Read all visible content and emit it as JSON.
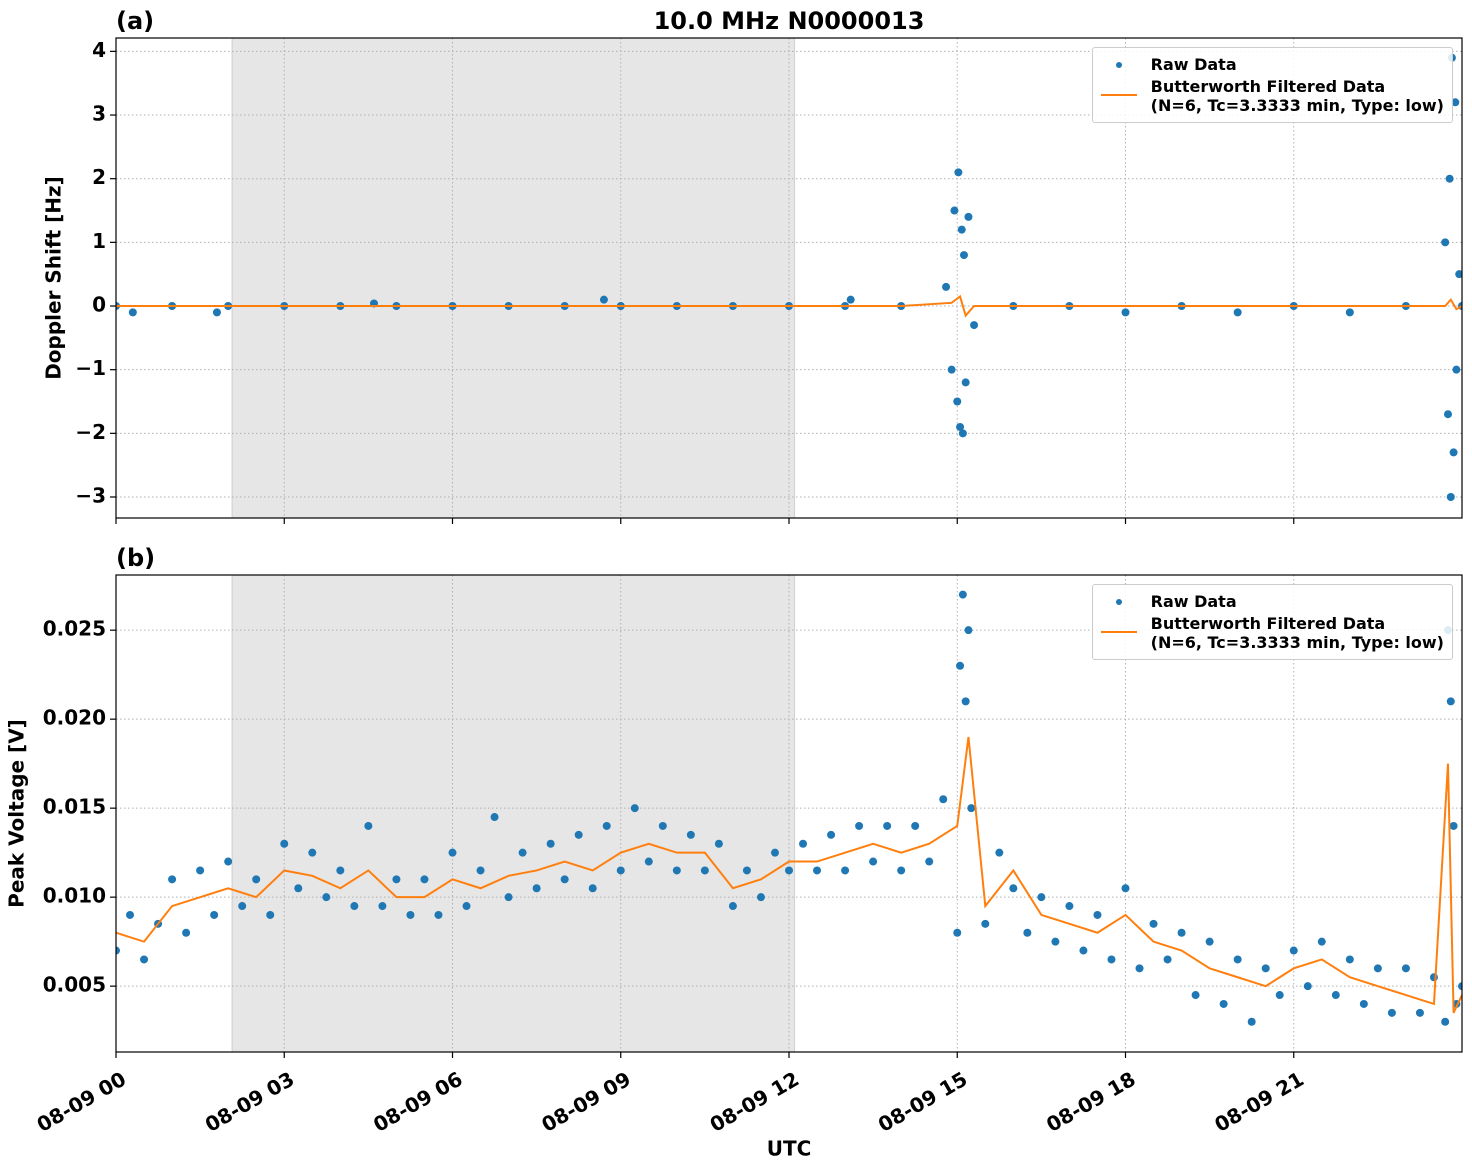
{
  "chart_data": [
    {
      "type": "scatter-line",
      "title": "10.0 MHz N0000013",
      "panel_label": "(a)",
      "ylabel": "Doppler Shift [Hz]",
      "xlim": [
        0,
        24
      ],
      "xticks": [
        0,
        3,
        6,
        9,
        12,
        15,
        18,
        21
      ],
      "ylim": [
        -3.33,
        4.21
      ],
      "yticks": [
        {
          "value": -3,
          "label": "−3"
        },
        {
          "value": -2,
          "label": "−2"
        },
        {
          "value": -1,
          "label": "−1"
        },
        0,
        1,
        2,
        3,
        4
      ],
      "grid": true,
      "legend": "upper right",
      "shaded_span": [
        2.07,
        12.1
      ],
      "series": [
        {
          "name": "Raw Data",
          "kind": "scatter",
          "color": "#1f77b4",
          "x": [
            0,
            0.3,
            1,
            1.8,
            2,
            3,
            4,
            4.6,
            5,
            6,
            7,
            8,
            8.7,
            9,
            10,
            11,
            12,
            13,
            13.1,
            14,
            14.8,
            14.9,
            14.95,
            15,
            15.02,
            15.05,
            15.08,
            15.1,
            15.12,
            15.15,
            15.2,
            15.3,
            16,
            17,
            18,
            19,
            20,
            21,
            22,
            23,
            23.7,
            23.75,
            23.78,
            23.8,
            23.82,
            23.85,
            23.88,
            23.9,
            23.95,
            24
          ],
          "values": [
            0,
            -0.1,
            0,
            -0.1,
            0,
            0,
            0,
            0.04,
            0,
            0,
            0,
            0,
            0.1,
            0,
            0,
            0,
            0,
            0,
            0.1,
            0,
            0.3,
            -1.0,
            1.5,
            -1.5,
            2.1,
            -1.9,
            1.2,
            -2.0,
            0.8,
            -1.2,
            1.4,
            -0.3,
            0,
            0,
            -0.1,
            0,
            -0.1,
            0,
            -0.1,
            0,
            1.0,
            -1.7,
            2.0,
            -3.0,
            3.9,
            -2.3,
            3.2,
            -1.0,
            0.5,
            0
          ]
        },
        {
          "name": "Butterworth Filtered Data\n(N=6, Tc=3.3333 min, Type: low)",
          "kind": "line",
          "color": "#ff7f0e",
          "x": [
            0,
            2,
            4,
            6,
            8,
            10,
            12,
            14,
            14.9,
            15.05,
            15.15,
            15.3,
            16,
            18,
            20,
            22,
            23.7,
            23.8,
            23.9,
            24
          ],
          "values": [
            0,
            0,
            0,
            0,
            0,
            0,
            0,
            0,
            0.05,
            0.15,
            -0.15,
            0,
            0,
            0,
            0,
            0,
            0,
            0.1,
            -0.05,
            0
          ]
        }
      ]
    },
    {
      "type": "scatter-line",
      "panel_label": "(b)",
      "ylabel": "Peak Voltage [V]",
      "xlabel": "UTC",
      "xlim": [
        0,
        24
      ],
      "xticks": [
        {
          "value": 0,
          "label": "08-09 00"
        },
        {
          "value": 3,
          "label": "08-09 03"
        },
        {
          "value": 6,
          "label": "08-09 06"
        },
        {
          "value": 9,
          "label": "08-09 09"
        },
        {
          "value": 12,
          "label": "08-09 12"
        },
        {
          "value": 15,
          "label": "08-09 15"
        },
        {
          "value": 18,
          "label": "08-09 18"
        },
        {
          "value": 21,
          "label": "08-09 21"
        }
      ],
      "ylim": [
        0.0013,
        0.0281
      ],
      "yticks": [
        0.005,
        {
          "value": 0.01,
          "label": "0.010"
        },
        0.015,
        {
          "value": 0.02,
          "label": "0.020"
        },
        0.025
      ],
      "grid": true,
      "legend": "upper right",
      "shaded_span": [
        2.07,
        12.1
      ],
      "series": [
        {
          "name": "Raw Data",
          "kind": "scatter",
          "color": "#1f77b4",
          "x": [
            0,
            0.25,
            0.5,
            0.75,
            1,
            1.25,
            1.5,
            1.75,
            2,
            2.25,
            2.5,
            2.75,
            3,
            3.25,
            3.5,
            3.75,
            4,
            4.25,
            4.5,
            4.75,
            5,
            5.25,
            5.5,
            5.75,
            6,
            6.25,
            6.5,
            6.75,
            7,
            7.25,
            7.5,
            7.75,
            8,
            8.25,
            8.5,
            8.75,
            9,
            9.25,
            9.5,
            9.75,
            10,
            10.25,
            10.5,
            10.75,
            11,
            11.25,
            11.5,
            11.75,
            12,
            12.25,
            12.5,
            12.75,
            13,
            13.25,
            13.5,
            13.75,
            14,
            14.25,
            14.5,
            14.75,
            15,
            15.05,
            15.1,
            15.15,
            15.2,
            15.25,
            15.5,
            15.75,
            16,
            16.25,
            16.5,
            16.75,
            17,
            17.25,
            17.5,
            17.75,
            18,
            18.25,
            18.5,
            18.75,
            19,
            19.25,
            19.5,
            19.75,
            20,
            20.25,
            20.5,
            20.75,
            21,
            21.25,
            21.5,
            21.75,
            22,
            22.25,
            22.5,
            22.75,
            23,
            23.25,
            23.5,
            23.7,
            23.75,
            23.8,
            23.85,
            23.9,
            24
          ],
          "values": [
            0.007,
            0.009,
            0.0065,
            0.0085,
            0.011,
            0.008,
            0.0115,
            0.009,
            0.012,
            0.0095,
            0.011,
            0.009,
            0.013,
            0.0105,
            0.0125,
            0.01,
            0.0115,
            0.0095,
            0.014,
            0.0095,
            0.011,
            0.009,
            0.011,
            0.009,
            0.0125,
            0.0095,
            0.0115,
            0.0145,
            0.01,
            0.0125,
            0.0105,
            0.013,
            0.011,
            0.0135,
            0.0105,
            0.014,
            0.0115,
            0.015,
            0.012,
            0.014,
            0.0115,
            0.0135,
            0.0115,
            0.013,
            0.0095,
            0.0115,
            0.01,
            0.0125,
            0.0115,
            0.013,
            0.0115,
            0.0135,
            0.0115,
            0.014,
            0.012,
            0.014,
            0.0115,
            0.014,
            0.012,
            0.0155,
            0.008,
            0.023,
            0.027,
            0.021,
            0.025,
            0.015,
            0.0085,
            0.0125,
            0.0105,
            0.008,
            0.01,
            0.0075,
            0.0095,
            0.007,
            0.009,
            0.0065,
            0.0105,
            0.006,
            0.0085,
            0.0065,
            0.008,
            0.0045,
            0.0075,
            0.004,
            0.0065,
            0.003,
            0.006,
            0.0045,
            0.007,
            0.005,
            0.0075,
            0.0045,
            0.0065,
            0.004,
            0.006,
            0.0035,
            0.006,
            0.0035,
            0.0055,
            0.003,
            0.025,
            0.021,
            0.014,
            0.004,
            0.005
          ]
        },
        {
          "name": "Butterworth Filtered Data\n(N=6, Tc=3.3333 min, Type: low)",
          "kind": "line",
          "color": "#ff7f0e",
          "x": [
            0,
            0.5,
            1,
            1.5,
            2,
            2.5,
            3,
            3.5,
            4,
            4.5,
            5,
            5.5,
            6,
            6.5,
            7,
            7.5,
            8,
            8.5,
            9,
            9.5,
            10,
            10.5,
            11,
            11.5,
            12,
            12.5,
            13,
            13.5,
            14,
            14.5,
            15,
            15.2,
            15.5,
            16,
            16.5,
            17,
            17.5,
            18,
            18.5,
            19,
            19.5,
            20,
            20.5,
            21,
            21.5,
            22,
            22.5,
            23,
            23.5,
            23.75,
            23.85,
            24
          ],
          "values": [
            0.008,
            0.0075,
            0.0095,
            0.01,
            0.0105,
            0.01,
            0.0115,
            0.0112,
            0.0105,
            0.0115,
            0.01,
            0.01,
            0.011,
            0.0105,
            0.0112,
            0.0115,
            0.012,
            0.0115,
            0.0125,
            0.013,
            0.0125,
            0.0125,
            0.0105,
            0.011,
            0.012,
            0.012,
            0.0125,
            0.013,
            0.0125,
            0.013,
            0.014,
            0.019,
            0.0095,
            0.0115,
            0.009,
            0.0085,
            0.008,
            0.009,
            0.0075,
            0.007,
            0.006,
            0.0055,
            0.005,
            0.006,
            0.0065,
            0.0055,
            0.005,
            0.0045,
            0.004,
            0.0175,
            0.0035,
            0.0045
          ]
        }
      ]
    }
  ]
}
